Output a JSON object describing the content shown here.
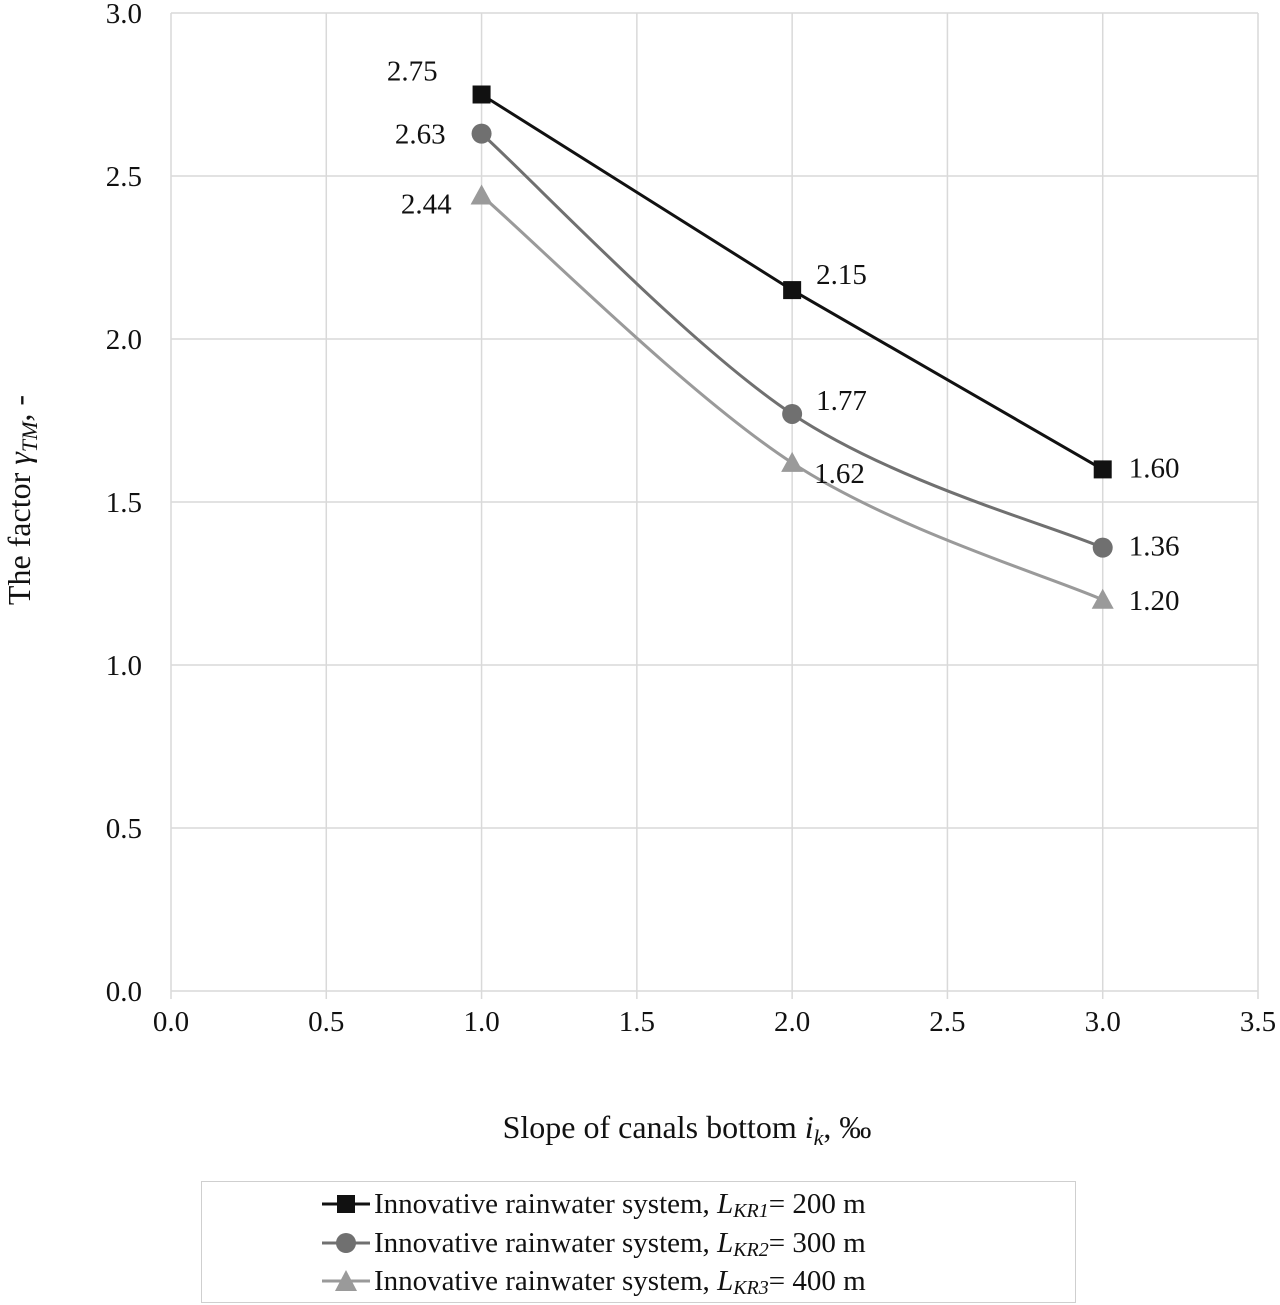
{
  "chart_data": {
    "type": "line",
    "title": "",
    "xlabel": "Slope of canals bottom i_k, ‰",
    "xlabel_parts": {
      "prefix": "Slope of canals bottom ",
      "var": "i",
      "sub": "k",
      "suffix": ", ‰"
    },
    "ylabel": "The factor γ_TM, -",
    "ylabel_parts": {
      "prefix": "The factor ",
      "var": "γ",
      "sub": "TM",
      "suffix": ", -"
    },
    "xlim": [
      0.0,
      3.5
    ],
    "ylim": [
      0.0,
      3.0
    ],
    "x_ticks": [
      "0.0",
      "0.5",
      "1.0",
      "1.5",
      "2.0",
      "2.5",
      "3.0",
      "3.5"
    ],
    "y_ticks": [
      "0.0",
      "0.5",
      "1.0",
      "1.5",
      "2.0",
      "2.5",
      "3.0"
    ],
    "grid": true,
    "legend_position": "bottom",
    "x": [
      1.0,
      2.0,
      3.0
    ],
    "series": [
      {
        "name": "Innovative rainwater system, L_KR1 = 200 m",
        "legend": {
          "prefix": "Innovative rainwater system, ",
          "var": "L",
          "sub": "KR1",
          "suffix": " = 200 m"
        },
        "values": [
          2.75,
          2.15,
          1.6
        ],
        "labels": [
          "2.75",
          "2.15",
          "1.60"
        ],
        "marker": "square",
        "color": "#111111",
        "smooth": false
      },
      {
        "name": "Innovative rainwater system, L_KR2 = 300 m",
        "legend": {
          "prefix": "Innovative rainwater system, ",
          "var": "L",
          "sub": "KR2",
          "suffix": " = 300 m"
        },
        "values": [
          2.63,
          1.77,
          1.36
        ],
        "labels": [
          "2.63",
          "1.77",
          "1.36"
        ],
        "marker": "circle",
        "color": "#707070",
        "smooth": true
      },
      {
        "name": "Innovative rainwater system, L_KR3 = 400 m",
        "legend": {
          "prefix": "Innovative rainwater system, ",
          "var": "L",
          "sub": "KR3",
          "suffix": " = 400 m"
        },
        "values": [
          2.44,
          1.62,
          1.2
        ],
        "labels": [
          "2.44",
          "1.62",
          "1.20"
        ],
        "marker": "triangle",
        "color": "#9a9a9a",
        "smooth": true
      }
    ]
  }
}
